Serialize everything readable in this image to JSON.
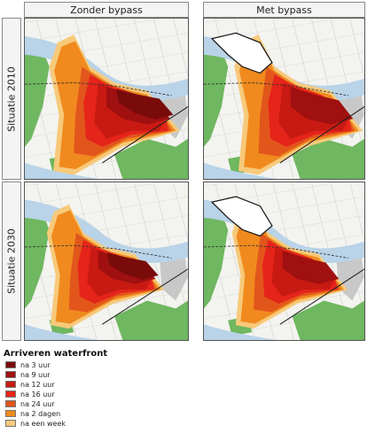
{
  "columns": {
    "left": "Zonder bypass",
    "right": "Met bypass"
  },
  "rows": {
    "top": "Situatie 2010",
    "bottom": "Situatie 2030"
  },
  "legend": {
    "title": "Arriveren waterfront",
    "items": [
      {
        "label": "na 3 uur",
        "color": "#7a0b0b"
      },
      {
        "label": "na 9 uur",
        "color": "#a01010"
      },
      {
        "label": "na 12 uur",
        "color": "#c81a12"
      },
      {
        "label": "na 16 uur",
        "color": "#e5241a"
      },
      {
        "label": "na 24 uur",
        "color": "#e2561c"
      },
      {
        "label": "na 2 dagen",
        "color": "#f08a1e"
      },
      {
        "label": "na een week",
        "color": "#f7c97a"
      }
    ]
  },
  "map_colors": {
    "water": "#b9d3e8",
    "forest": "#6fb760",
    "urban": "#c8c8c8",
    "bypass_outline": "#1a1a1a"
  }
}
